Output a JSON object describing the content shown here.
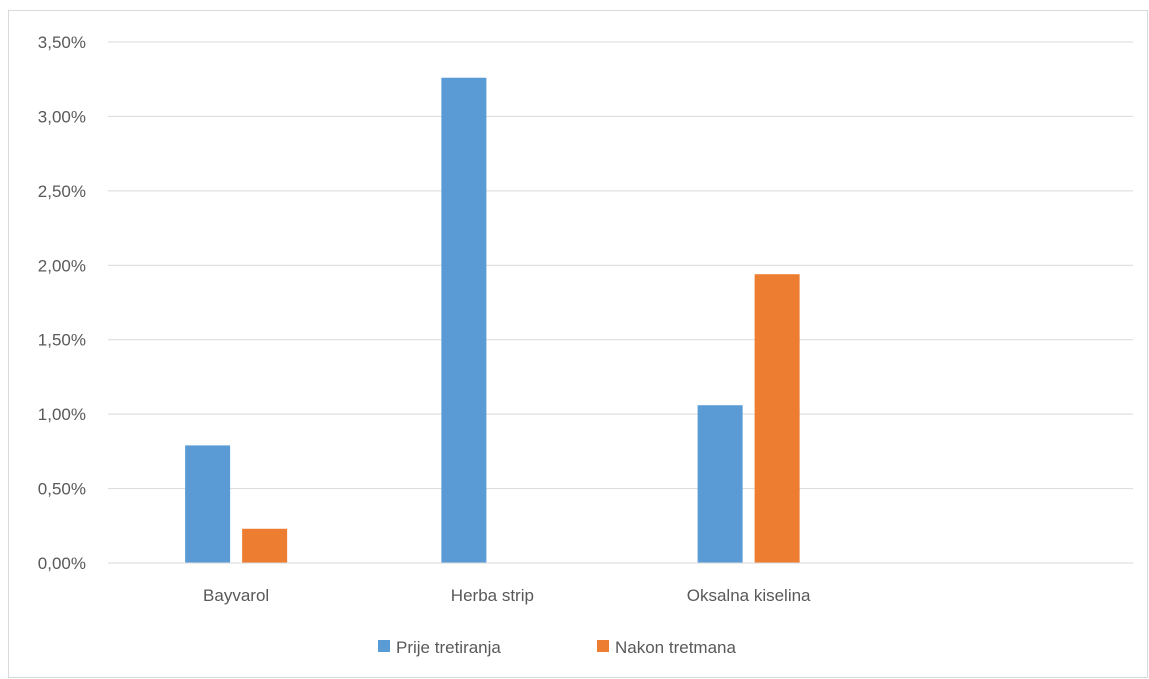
{
  "chart_data": {
    "type": "bar",
    "title": "",
    "xlabel": "",
    "ylabel": "",
    "categories": [
      "Bayvarol",
      "Herba strip",
      "Oksalna kiselina",
      ""
    ],
    "series": [
      {
        "name": "Prije tretiranja",
        "color": "#5b9bd5",
        "values": [
          0.79,
          3.26,
          1.06,
          null
        ]
      },
      {
        "name": "Nakon tretmana",
        "color": "#ed7d31",
        "values": [
          0.23,
          0,
          1.94,
          null
        ]
      }
    ],
    "ylim": [
      0,
      3.5
    ],
    "yticks": [
      0,
      0.5,
      1.0,
      1.5,
      2.0,
      2.5,
      3.0,
      3.5
    ],
    "ytick_labels": [
      "0,00%",
      "0,50%",
      "1,00%",
      "1,50%",
      "2,00%",
      "2,50%",
      "3,00%",
      "3,50%"
    ],
    "grid": true,
    "legend_position": "bottom",
    "gridline_color": "#d9d9d9"
  }
}
